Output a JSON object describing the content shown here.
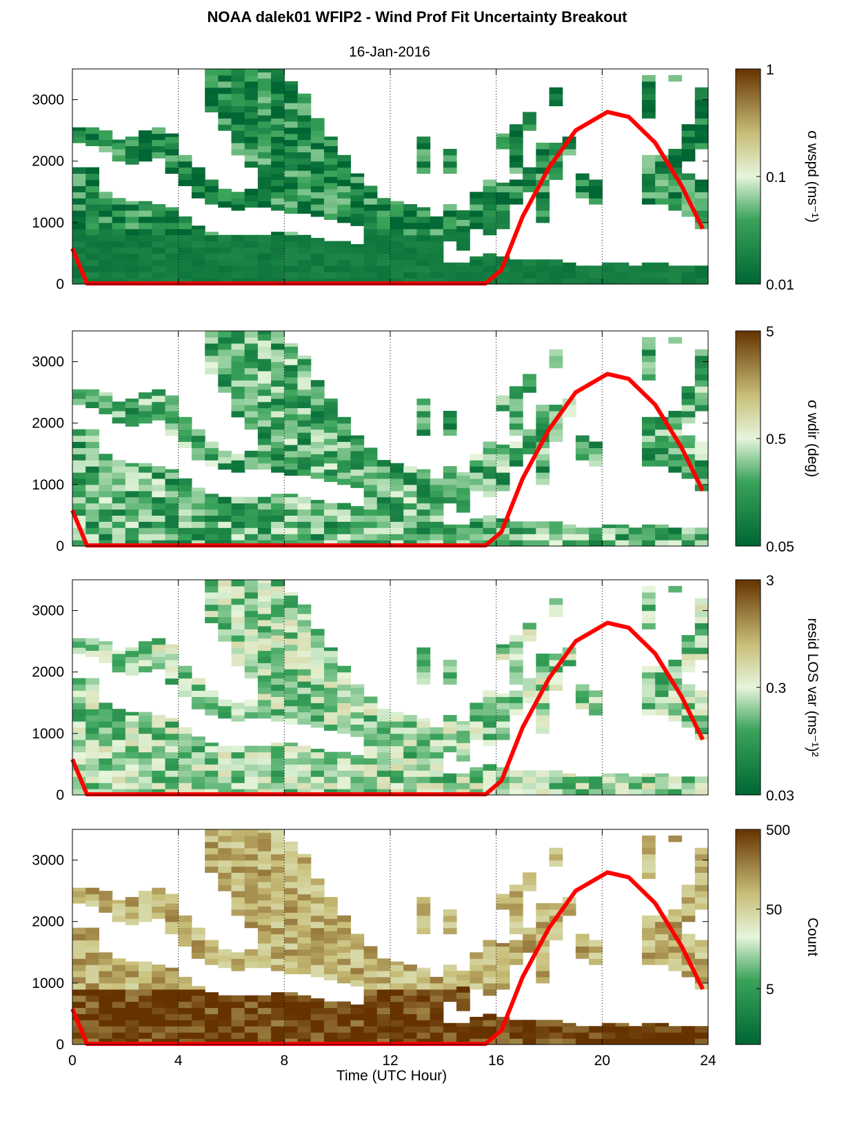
{
  "figure": {
    "title": "NOAA dalek01 WFIP2 - Wind Prof Fit Uncertainty Breakout",
    "subtitle": "16-Jan-2016",
    "xlabel": "Time (UTC Hour)"
  },
  "colors": {
    "dark_green": "#006633",
    "mid_green": "#3aa35a",
    "light_green": "#e6f5dc",
    "light_tan": "#c8be78",
    "dark_brown": "#663300",
    "sun_curve": "#ff0000",
    "gridline": "#000000"
  },
  "chart_data": [
    {
      "type": "heatmap",
      "panel": 1,
      "colorbar_label": "σ wspd (ms⁻¹)",
      "colorbar_scale": "log",
      "colorbar_ticks": [
        "1",
        "0.1",
        "0.01"
      ],
      "colorbar_range": [
        0.01,
        1
      ],
      "x_ticks": [
        "0",
        "4",
        "8",
        "12",
        "16",
        "20",
        "24"
      ],
      "y_ticks": [
        "0",
        "1000",
        "2000",
        "3000"
      ],
      "xlim": [
        0,
        24
      ],
      "ylim": [
        0,
        3500
      ],
      "fill_level": 0.15,
      "grid": "vertical dotted at x = 4, 8, 12, 16, 20, 24"
    },
    {
      "type": "heatmap",
      "panel": 2,
      "colorbar_label": "σ wdir (deg)",
      "colorbar_scale": "log",
      "colorbar_ticks": [
        "5",
        "0.5",
        "0.05"
      ],
      "colorbar_range": [
        0.05,
        5
      ],
      "x_ticks": [
        "0",
        "4",
        "8",
        "12",
        "16",
        "20",
        "24"
      ],
      "y_ticks": [
        "0",
        "1000",
        "2000",
        "3000"
      ],
      "xlim": [
        0,
        24
      ],
      "ylim": [
        0,
        3500
      ],
      "fill_level": 0.28,
      "grid": "vertical dotted at x = 4, 8, 12, 16, 20, 24"
    },
    {
      "type": "heatmap",
      "panel": 3,
      "colorbar_label": "resid LOS var (ms⁻¹)²",
      "colorbar_scale": "log",
      "colorbar_ticks": [
        "3",
        "0.3",
        "0.03"
      ],
      "colorbar_range": [
        0.03,
        3
      ],
      "x_ticks": [
        "0",
        "4",
        "8",
        "12",
        "16",
        "20",
        "24"
      ],
      "y_ticks": [
        "0",
        "1000",
        "2000",
        "3000"
      ],
      "xlim": [
        0,
        24
      ],
      "ylim": [
        0,
        3500
      ],
      "fill_level": 0.4,
      "grid": "vertical dotted at x = 4, 8, 12, 16, 20, 24"
    },
    {
      "type": "heatmap",
      "panel": 4,
      "colorbar_label": "Count",
      "colorbar_scale": "log",
      "colorbar_ticks": [
        "500",
        "50",
        "5"
      ],
      "colorbar_range": [
        1,
        500
      ],
      "x_ticks": [
        "0",
        "4",
        "8",
        "12",
        "16",
        "20",
        "24"
      ],
      "y_ticks": [
        "0",
        "1000",
        "2000",
        "3000"
      ],
      "xlim": [
        0,
        24
      ],
      "ylim": [
        0,
        3500
      ],
      "fill_level": 0.85,
      "grid": "vertical dotted at x = 4, 8, 12, 16, 20, 24"
    }
  ],
  "sun_curve": {
    "color": "#ff0000",
    "x": [
      0,
      0.55,
      15.6,
      16.2,
      17,
      18,
      19,
      20.2,
      21,
      22,
      23,
      23.8
    ],
    "y": [
      580,
      10,
      10,
      230,
      1100,
      1900,
      2500,
      2800,
      2720,
      2300,
      1600,
      900
    ]
  },
  "coverage": {
    "description_free": true,
    "cols": [
      {
        "x0": 0.0,
        "ranges": [
          [
            0,
            1900
          ],
          [
            2300,
            2550
          ]
        ]
      },
      {
        "x0": 0.5,
        "ranges": [
          [
            0,
            1900
          ],
          [
            2250,
            2550
          ]
        ]
      },
      {
        "x0": 1.0,
        "ranges": [
          [
            0,
            1500
          ],
          [
            2150,
            2500
          ]
        ]
      },
      {
        "x0": 1.5,
        "ranges": [
          [
            0,
            1400
          ],
          [
            2000,
            2350
          ]
        ]
      },
      {
        "x0": 2.0,
        "ranges": [
          [
            0,
            1350
          ],
          [
            1950,
            2400
          ]
        ]
      },
      {
        "x0": 2.5,
        "ranges": [
          [
            0,
            1350
          ],
          [
            2000,
            2500
          ]
        ]
      },
      {
        "x0": 3.0,
        "ranges": [
          [
            0,
            1300
          ],
          [
            2050,
            2550
          ]
        ]
      },
      {
        "x0": 3.5,
        "ranges": [
          [
            0,
            1250
          ],
          [
            1800,
            2450
          ]
        ]
      },
      {
        "x0": 4.0,
        "ranges": [
          [
            0,
            1100
          ],
          [
            1600,
            2100
          ]
        ]
      },
      {
        "x0": 4.5,
        "ranges": [
          [
            0,
            950
          ],
          [
            1400,
            1900
          ]
        ]
      },
      {
        "x0": 5.0,
        "ranges": [
          [
            0,
            850
          ],
          [
            1300,
            1700
          ],
          [
            2800,
            3500
          ]
        ]
      },
      {
        "x0": 5.5,
        "ranges": [
          [
            0,
            800
          ],
          [
            1250,
            1550
          ],
          [
            2500,
            3500
          ]
        ]
      },
      {
        "x0": 6.0,
        "ranges": [
          [
            0,
            800
          ],
          [
            1200,
            1500
          ],
          [
            2100,
            3500
          ]
        ]
      },
      {
        "x0": 6.5,
        "ranges": [
          [
            0,
            800
          ],
          [
            1250,
            1550
          ],
          [
            1900,
            3500
          ]
        ]
      },
      {
        "x0": 7.0,
        "ranges": [
          [
            0,
            800
          ],
          [
            1250,
            3500
          ]
        ]
      },
      {
        "x0": 7.5,
        "ranges": [
          [
            0,
            850
          ],
          [
            1200,
            3500
          ]
        ]
      },
      {
        "x0": 8.0,
        "ranges": [
          [
            0,
            850
          ],
          [
            1150,
            3300
          ]
        ]
      },
      {
        "x0": 8.5,
        "ranges": [
          [
            0,
            800
          ],
          [
            1150,
            3100
          ]
        ]
      },
      {
        "x0": 9.0,
        "ranges": [
          [
            0,
            750
          ],
          [
            1100,
            2700
          ]
        ]
      },
      {
        "x0": 9.5,
        "ranges": [
          [
            0,
            700
          ],
          [
            1050,
            2400
          ]
        ]
      },
      {
        "x0": 10.0,
        "ranges": [
          [
            0,
            700
          ],
          [
            1000,
            2100
          ]
        ]
      },
      {
        "x0": 10.5,
        "ranges": [
          [
            0,
            650
          ],
          [
            950,
            1800
          ]
        ]
      },
      {
        "x0": 11.0,
        "ranges": [
          [
            0,
            1600
          ]
        ]
      },
      {
        "x0": 11.5,
        "ranges": [
          [
            0,
            1400
          ]
        ]
      },
      {
        "x0": 12.0,
        "ranges": [
          [
            0,
            1350
          ]
        ]
      },
      {
        "x0": 12.5,
        "ranges": [
          [
            0,
            1300
          ]
        ]
      },
      {
        "x0": 13.0,
        "ranges": [
          [
            0,
            1250
          ],
          [
            1800,
            2400
          ]
        ]
      },
      {
        "x0": 13.5,
        "ranges": [
          [
            0,
            1100
          ]
        ]
      },
      {
        "x0": 14.0,
        "ranges": [
          [
            0,
            350
          ],
          [
            700,
            1300
          ],
          [
            1800,
            2200
          ]
        ]
      },
      {
        "x0": 14.5,
        "ranges": [
          [
            0,
            350
          ],
          [
            550,
            1200
          ]
        ]
      },
      {
        "x0": 15.0,
        "ranges": [
          [
            0,
            450
          ],
          [
            900,
            1500
          ]
        ]
      },
      {
        "x0": 15.5,
        "ranges": [
          [
            0,
            500
          ],
          [
            800,
            1700
          ]
        ]
      },
      {
        "x0": 16.0,
        "ranges": [
          [
            0,
            450
          ],
          [
            900,
            1650
          ],
          [
            2200,
            2450
          ]
        ]
      },
      {
        "x0": 16.5,
        "ranges": [
          [
            0,
            400
          ],
          [
            1300,
            1700
          ],
          [
            1800,
            2600
          ]
        ]
      },
      {
        "x0": 17.0,
        "ranges": [
          [
            0,
            400
          ],
          [
            1500,
            1900
          ],
          [
            2500,
            2800
          ]
        ]
      },
      {
        "x0": 17.5,
        "ranges": [
          [
            0,
            400
          ],
          [
            1000,
            2300
          ]
        ]
      },
      {
        "x0": 18.0,
        "ranges": [
          [
            0,
            400
          ],
          [
            1700,
            2300
          ],
          [
            2900,
            3200
          ]
        ]
      },
      {
        "x0": 18.5,
        "ranges": [
          [
            0,
            350
          ],
          [
            2100,
            2400
          ]
        ]
      },
      {
        "x0": 19.0,
        "ranges": [
          [
            0,
            300
          ],
          [
            1400,
            1800
          ]
        ]
      },
      {
        "x0": 19.5,
        "ranges": [
          [
            0,
            300
          ],
          [
            1300,
            1700
          ]
        ]
      },
      {
        "x0": 20.0,
        "ranges": [
          [
            0,
            350
          ]
        ]
      },
      {
        "x0": 20.5,
        "ranges": [
          [
            0,
            350
          ]
        ]
      },
      {
        "x0": 21.0,
        "ranges": [
          [
            0,
            300
          ]
        ]
      },
      {
        "x0": 21.5,
        "ranges": [
          [
            0,
            350
          ],
          [
            1300,
            2100
          ],
          [
            2700,
            3400
          ]
        ]
      },
      {
        "x0": 22.0,
        "ranges": [
          [
            0,
            350
          ],
          [
            1300,
            2100
          ]
        ]
      },
      {
        "x0": 22.5,
        "ranges": [
          [
            0,
            300
          ],
          [
            1200,
            2200
          ],
          [
            3300,
            3400
          ]
        ]
      },
      {
        "x0": 23.0,
        "ranges": [
          [
            0,
            300
          ],
          [
            1100,
            1800
          ],
          [
            2000,
            2600
          ]
        ]
      },
      {
        "x0": 23.5,
        "ranges": [
          [
            0,
            300
          ],
          [
            900,
            1700
          ],
          [
            2200,
            3200
          ]
        ]
      }
    ]
  }
}
